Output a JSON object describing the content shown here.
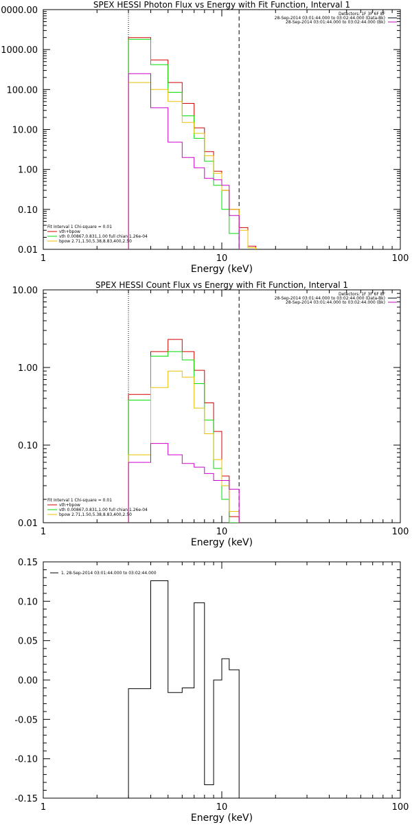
{
  "colors": {
    "total": "#d40000",
    "vth": "#00dd00",
    "bpow": "#e8c000",
    "data": "#cc00cc",
    "resid": "#000000"
  },
  "chart_data": [
    {
      "type": "line",
      "title": "SPEX HESSI Photon Flux vs Energy with Fit Function, Interval 1",
      "xlabel": "Energy (keV)",
      "ylabel": "",
      "xscale": "log",
      "yscale": "log",
      "xlim": [
        1,
        100
      ],
      "ylim": [
        0.01,
        10000
      ],
      "xticks": [
        "1",
        "10",
        "100"
      ],
      "yticks": [
        "0.01",
        "0.10",
        "1.00",
        "10.00",
        "100.00",
        "1000.00",
        "0000.00"
      ],
      "vlines": {
        "dotted": 3,
        "dashed": 12.5
      },
      "bin_edges": [
        3,
        4,
        5,
        6,
        7,
        8,
        9,
        10,
        11,
        12.5,
        14,
        15.5
      ],
      "header": [
        "Detectors: 1F 3F 6F 8F",
        "28-Sep-2014 03:01:44.000 to 03:02:44.000 (Data-Bk)",
        "28-Sep-2014 03:01:44.000 to 03:02:44.000 (Bk)"
      ],
      "legend_title": "Fit Interval 1   Chi-square = 0.01",
      "series": [
        {
          "name": "vth+bpow",
          "color_key": "total",
          "values": [
            2000,
            550,
            150,
            45,
            11,
            2.8,
            0.9,
            0.3,
            0.1,
            0.035,
            0.012
          ]
        },
        {
          "name": "vth 0.00867,0.831,1.00  full chian 1.26e-04",
          "color_key": "vth",
          "values": [
            1800,
            420,
            85,
            22,
            6,
            1.6,
            0.4,
            0.1,
            0.025,
            null,
            null
          ]
        },
        {
          "name": "bpow 2.71,1.50,5.38,8.83,400,2.50",
          "color_key": "bpow",
          "values": [
            150,
            100,
            50,
            15,
            8,
            2.2,
            0.8,
            0.3,
            0.1,
            0.03,
            0.011
          ]
        },
        {
          "name": "",
          "color_key": "data",
          "values": [
            250,
            35,
            4.8,
            2.0,
            1.1,
            0.6,
            0.55,
            0.4,
            0.07,
            null,
            null
          ]
        }
      ]
    },
    {
      "type": "line",
      "title": "SPEX HESSI Count Flux vs Energy with Fit Function, Interval 1",
      "xlabel": "Energy (keV)",
      "ylabel": "",
      "xscale": "log",
      "yscale": "log",
      "xlim": [
        1,
        100
      ],
      "ylim": [
        0.01,
        10
      ],
      "xticks": [
        "1",
        "10",
        "100"
      ],
      "yticks": [
        "0.01",
        "0.10",
        "1.00",
        "10.00"
      ],
      "vlines": {
        "dotted": 3,
        "dashed": 12.5
      },
      "bin_edges": [
        3,
        4,
        5,
        6,
        7,
        8,
        9,
        10,
        11,
        12.5
      ],
      "header": [
        "Detectors: 1F 3F 6F 8F",
        "28-Sep-2014 03:01:44.000 to 03:02:44.000 (Data-Bk)",
        "28-Sep-2014 03:01:44.000 to 03:02:44.000 (Bk)"
      ],
      "legend_title": "Fit Interval 1   Chi-square = 0.01",
      "series": [
        {
          "name": "vth+bpow",
          "color_key": "total",
          "values": [
            0.45,
            1.6,
            2.3,
            1.6,
            0.92,
            0.35,
            0.15,
            0.04,
            0.012
          ]
        },
        {
          "name": "vth 0.00867,0.831,1.00  full chian 1.26e-04",
          "color_key": "vth",
          "values": [
            0.38,
            1.4,
            1.6,
            1.25,
            0.62,
            0.21,
            0.05,
            0.02,
            0.01
          ]
        },
        {
          "name": "bpow 2.71,1.50,5.38,8.83,400,2.50",
          "color_key": "bpow",
          "values": [
            0.075,
            0.55,
            0.9,
            0.75,
            0.3,
            0.14,
            0.065,
            0.03,
            0.014
          ]
        },
        {
          "name": "",
          "color_key": "data",
          "values": [
            0.06,
            0.105,
            0.075,
            0.058,
            0.052,
            0.043,
            0.035,
            0.035,
            0.027
          ]
        }
      ]
    },
    {
      "type": "line",
      "title": "",
      "xlabel": "Energy (keV)",
      "ylabel": "",
      "xscale": "log",
      "yscale": "linear",
      "xlim": [
        1,
        100
      ],
      "ylim": [
        -0.15,
        0.15
      ],
      "xticks": [
        "1",
        "10",
        "100"
      ],
      "yticks": [
        "-0.15",
        "-0.10",
        "-0.05",
        "0.00",
        "0.05",
        "0.10",
        "0.15"
      ],
      "bin_edges": [
        3,
        4,
        5,
        6,
        7,
        8,
        9,
        10,
        11,
        12.5
      ],
      "legend": "1. 28-Sep-2014 03:01:44.000 to 03:02:44.000",
      "series": [
        {
          "name": "1. 28-Sep-2014 03:01:44.000 to 03:02:44.000",
          "color_key": "resid",
          "values": [
            -0.011,
            0.126,
            -0.016,
            -0.01,
            0.098,
            -0.133,
            0.0,
            0.027,
            0.013
          ]
        }
      ]
    }
  ]
}
